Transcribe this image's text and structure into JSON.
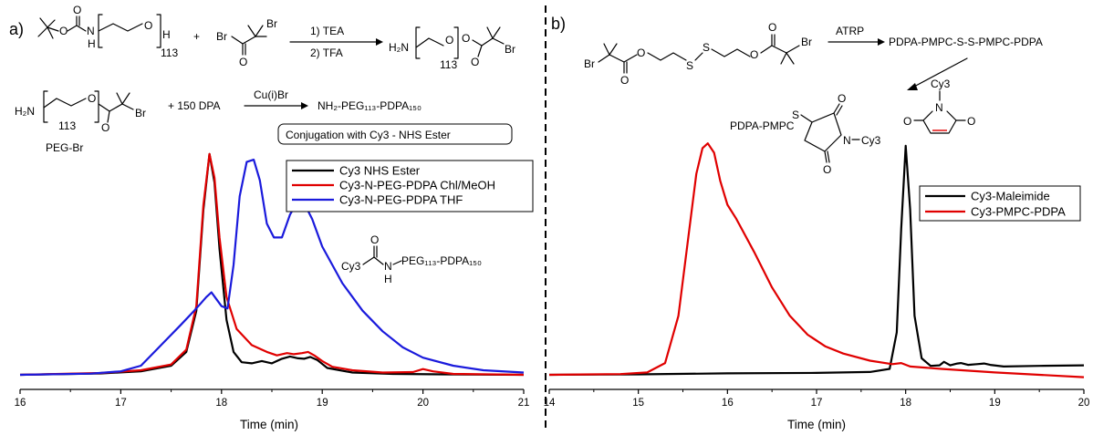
{
  "panels": {
    "a": {
      "label": "a)",
      "scheme": {
        "plus": "+",
        "step1_reagent1": "1) TEA",
        "step1_reagent2": "2) TFA",
        "h2n_product": "H₂N",
        "sub_113_a": "113",
        "sub_113_b": "113",
        "sub_113_c": "113",
        "subscript_h": "H",
        "br_1": "Br",
        "br_2": "Br",
        "br_3": "Br",
        "br_4": "Br",
        "o_atom": "O",
        "n_h": "H",
        "n_atom": "N",
        "h2n_peg": "H₂N",
        "dpa": "+ 150  DPA",
        "catalyst": "Cu(i)Br",
        "product": "NH₂-PEG₁₁₃-PDPA₁₅₀",
        "peg_br_label": "PEG-Br",
        "conjugation_box": "Conjugation with Cy3 - NHS Ester",
        "inset_cy3": "Cy3",
        "inset_chain": "PEG₁₁₃-PDPA₁₅₀",
        "inset_n": "N",
        "inset_h": "H",
        "inset_o": "O"
      }
    },
    "b": {
      "label": "b)",
      "scheme": {
        "br_left": "Br",
        "br_right": "Br",
        "s1": "S",
        "s2": "S",
        "o1": "O",
        "o2": "O",
        "atrp": "ATRP",
        "product": "PDPA-PMPC-S-S-PMPC-PDPA",
        "conj_left": "PDPA-PMPC",
        "conj_s": "S",
        "conj_n": "N",
        "conj_cy3": "Cy3",
        "conj_o1": "O",
        "conj_o2": "O",
        "mal_cy3": "Cy3",
        "mal_n": "N",
        "mal_o1": "O",
        "mal_o2": "O"
      }
    }
  },
  "chart_data": [
    {
      "type": "line",
      "panel": "a",
      "xlabel": "Time (min)",
      "ylabel": "",
      "xlim": [
        16,
        21
      ],
      "xticks": [
        "16",
        "17",
        "18",
        "19",
        "20",
        "21"
      ],
      "legend_position": "top-right",
      "series": [
        {
          "name": "Cy3 NHS Ester",
          "color": "#000000",
          "x": [
            16.0,
            16.8,
            17.2,
            17.5,
            17.65,
            17.75,
            17.82,
            17.88,
            17.93,
            17.98,
            18.05,
            18.12,
            18.2,
            18.3,
            18.4,
            18.5,
            18.6,
            18.68,
            18.76,
            18.82,
            18.88,
            18.95,
            19.05,
            19.3,
            19.7,
            20.2,
            21.0
          ],
          "y": [
            0.0,
            0.006,
            0.015,
            0.04,
            0.1,
            0.28,
            0.72,
            0.965,
            0.84,
            0.55,
            0.24,
            0.1,
            0.055,
            0.05,
            0.06,
            0.05,
            0.07,
            0.08,
            0.072,
            0.07,
            0.078,
            0.065,
            0.03,
            0.01,
            0.004,
            0.002,
            0.0
          ]
        },
        {
          "name": "Cy3-N-PEG-PDPA Chl/MeOH",
          "color": "#e00000",
          "x": [
            16.0,
            16.8,
            17.2,
            17.5,
            17.65,
            17.75,
            17.82,
            17.88,
            17.93,
            17.98,
            18.05,
            18.15,
            18.3,
            18.45,
            18.55,
            18.65,
            18.72,
            18.8,
            18.86,
            18.92,
            19.0,
            19.1,
            19.3,
            19.6,
            19.9,
            20.0,
            20.1,
            20.3,
            21.0
          ],
          "y": [
            0.0,
            0.008,
            0.02,
            0.045,
            0.11,
            0.3,
            0.74,
            0.965,
            0.86,
            0.6,
            0.34,
            0.2,
            0.13,
            0.1,
            0.085,
            0.095,
            0.09,
            0.095,
            0.1,
            0.085,
            0.06,
            0.035,
            0.02,
            0.01,
            0.012,
            0.025,
            0.015,
            0.004,
            0.0
          ]
        },
        {
          "name": "Cy3-N-PEG-PDPA THF",
          "color": "#1a1adc",
          "x": [
            16.0,
            16.7,
            17.0,
            17.2,
            17.4,
            17.6,
            17.75,
            17.85,
            17.9,
            17.95,
            18.0,
            18.06,
            18.12,
            18.18,
            18.25,
            18.32,
            18.38,
            18.45,
            18.52,
            18.6,
            18.68,
            18.76,
            18.82,
            18.9,
            19.0,
            19.2,
            19.4,
            19.6,
            19.8,
            20.0,
            20.3,
            20.6,
            21.0
          ],
          "y": [
            0.0,
            0.005,
            0.015,
            0.04,
            0.13,
            0.22,
            0.29,
            0.34,
            0.36,
            0.33,
            0.3,
            0.29,
            0.48,
            0.78,
            0.93,
            0.94,
            0.85,
            0.66,
            0.6,
            0.6,
            0.7,
            0.76,
            0.75,
            0.68,
            0.56,
            0.4,
            0.28,
            0.19,
            0.12,
            0.075,
            0.04,
            0.02,
            0.01
          ]
        }
      ]
    },
    {
      "type": "line",
      "panel": "b",
      "xlabel": "Time (min)",
      "ylabel": "",
      "xlim": [
        14,
        20
      ],
      "xticks": [
        "14",
        "15",
        "16",
        "17",
        "18",
        "19",
        "20"
      ],
      "legend_position": "middle-right",
      "series": [
        {
          "name": "Cy3-Maleimide",
          "color": "#000000",
          "x": [
            14.0,
            15.0,
            16.0,
            17.0,
            17.6,
            17.82,
            17.9,
            17.95,
            18.0,
            18.05,
            18.1,
            18.18,
            18.28,
            18.38,
            18.43,
            18.5,
            18.58,
            18.62,
            18.7,
            18.8,
            18.88,
            18.95,
            19.1,
            19.5,
            20.0
          ],
          "y": [
            0.0,
            0.002,
            0.006,
            0.008,
            0.012,
            0.025,
            0.18,
            0.62,
            0.97,
            0.7,
            0.25,
            0.07,
            0.038,
            0.04,
            0.055,
            0.04,
            0.048,
            0.05,
            0.042,
            0.045,
            0.048,
            0.042,
            0.035,
            0.038,
            0.04
          ]
        },
        {
          "name": "Cy3-PMPC-PDPA",
          "color": "#e00000",
          "x": [
            14.0,
            14.8,
            15.1,
            15.3,
            15.45,
            15.55,
            15.65,
            15.72,
            15.78,
            15.85,
            15.92,
            16.0,
            16.1,
            16.3,
            16.5,
            16.7,
            16.9,
            17.1,
            17.3,
            17.6,
            17.85,
            17.95,
            18.05,
            18.4,
            19.0,
            19.5,
            20.0
          ],
          "y": [
            0.0,
            0.003,
            0.01,
            0.05,
            0.25,
            0.55,
            0.85,
            0.96,
            0.98,
            0.94,
            0.82,
            0.72,
            0.66,
            0.52,
            0.37,
            0.25,
            0.17,
            0.12,
            0.09,
            0.06,
            0.045,
            0.05,
            0.035,
            0.025,
            0.01,
            0.0,
            -0.01
          ]
        }
      ]
    }
  ]
}
